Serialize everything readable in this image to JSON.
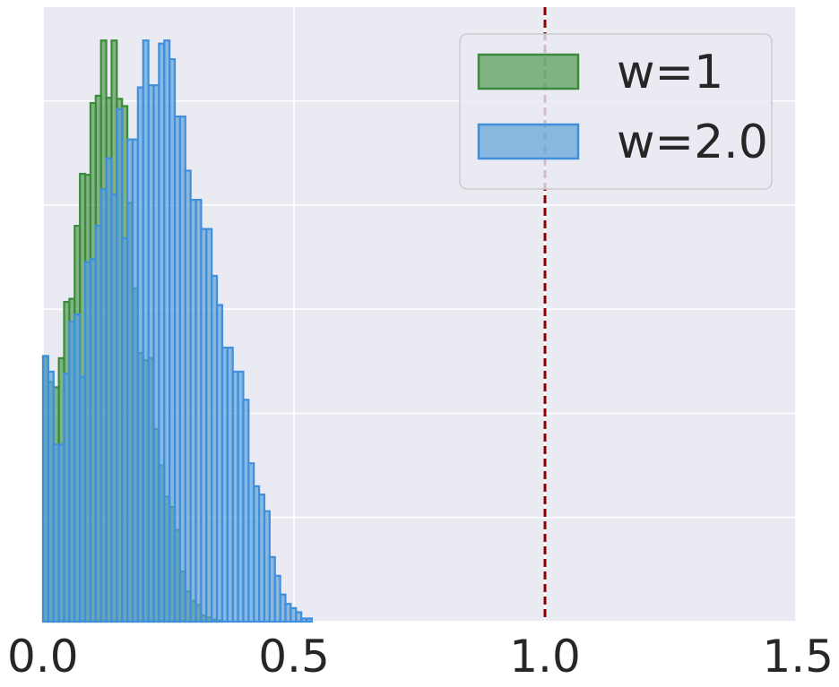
{
  "chart_data": {
    "type": "histogram",
    "title": "",
    "xlabel": "",
    "ylabel": "",
    "xlim": [
      0.0,
      1.5
    ],
    "ylim": [
      0,
      5.9
    ],
    "x_ticks": [
      "0.0",
      "0.5",
      "1.0",
      "1.5"
    ],
    "y_ticks": [
      0,
      1,
      2,
      3,
      4,
      5
    ],
    "y_tick_labels_visible": false,
    "grid": true,
    "legend_position": "top-right",
    "reference_line": {
      "x": 1.0,
      "style": "dashed",
      "color": "#8b0000"
    },
    "series": [
      {
        "name": "w=1",
        "color": "#4c9a4c",
        "edge_color": "#3d8a3d",
        "bin_start": 0.0,
        "bin_width": 0.0105,
        "values": [
          2.55,
          2.3,
          2.25,
          2.53,
          3.07,
          3.1,
          3.8,
          4.3,
          4.29,
          4.98,
          5.05,
          5.58,
          5.03,
          5.58,
          5.02,
          4.95,
          4.02,
          3.2,
          2.58,
          2.51,
          2.53,
          1.85,
          1.5,
          1.2,
          1.1,
          0.88,
          0.48,
          0.29,
          0.2,
          0.16,
          0.06,
          0.04,
          0.02,
          0.01
        ]
      },
      {
        "name": "w=2.0",
        "color": "#5a9fd6",
        "edge_color": "#3f8fdc",
        "bin_start": 0.0,
        "bin_width": 0.0105,
        "values": [
          2.55,
          2.4,
          1.7,
          1.7,
          2.38,
          2.88,
          2.95,
          2.35,
          3.45,
          3.48,
          3.8,
          4.15,
          4.45,
          4.1,
          4.92,
          3.68,
          4.63,
          4.63,
          5.13,
          5.58,
          5.15,
          5.15,
          5.55,
          5.58,
          5.4,
          4.85,
          4.85,
          4.33,
          4.05,
          4.05,
          3.77,
          3.77,
          3.32,
          3.04,
          2.63,
          2.63,
          2.4,
          2.4,
          2.13,
          1.52,
          1.3,
          1.22,
          1.06,
          0.62,
          0.44,
          0.26,
          0.17,
          0.13,
          0.09,
          0.03,
          0.03
        ]
      }
    ]
  }
}
